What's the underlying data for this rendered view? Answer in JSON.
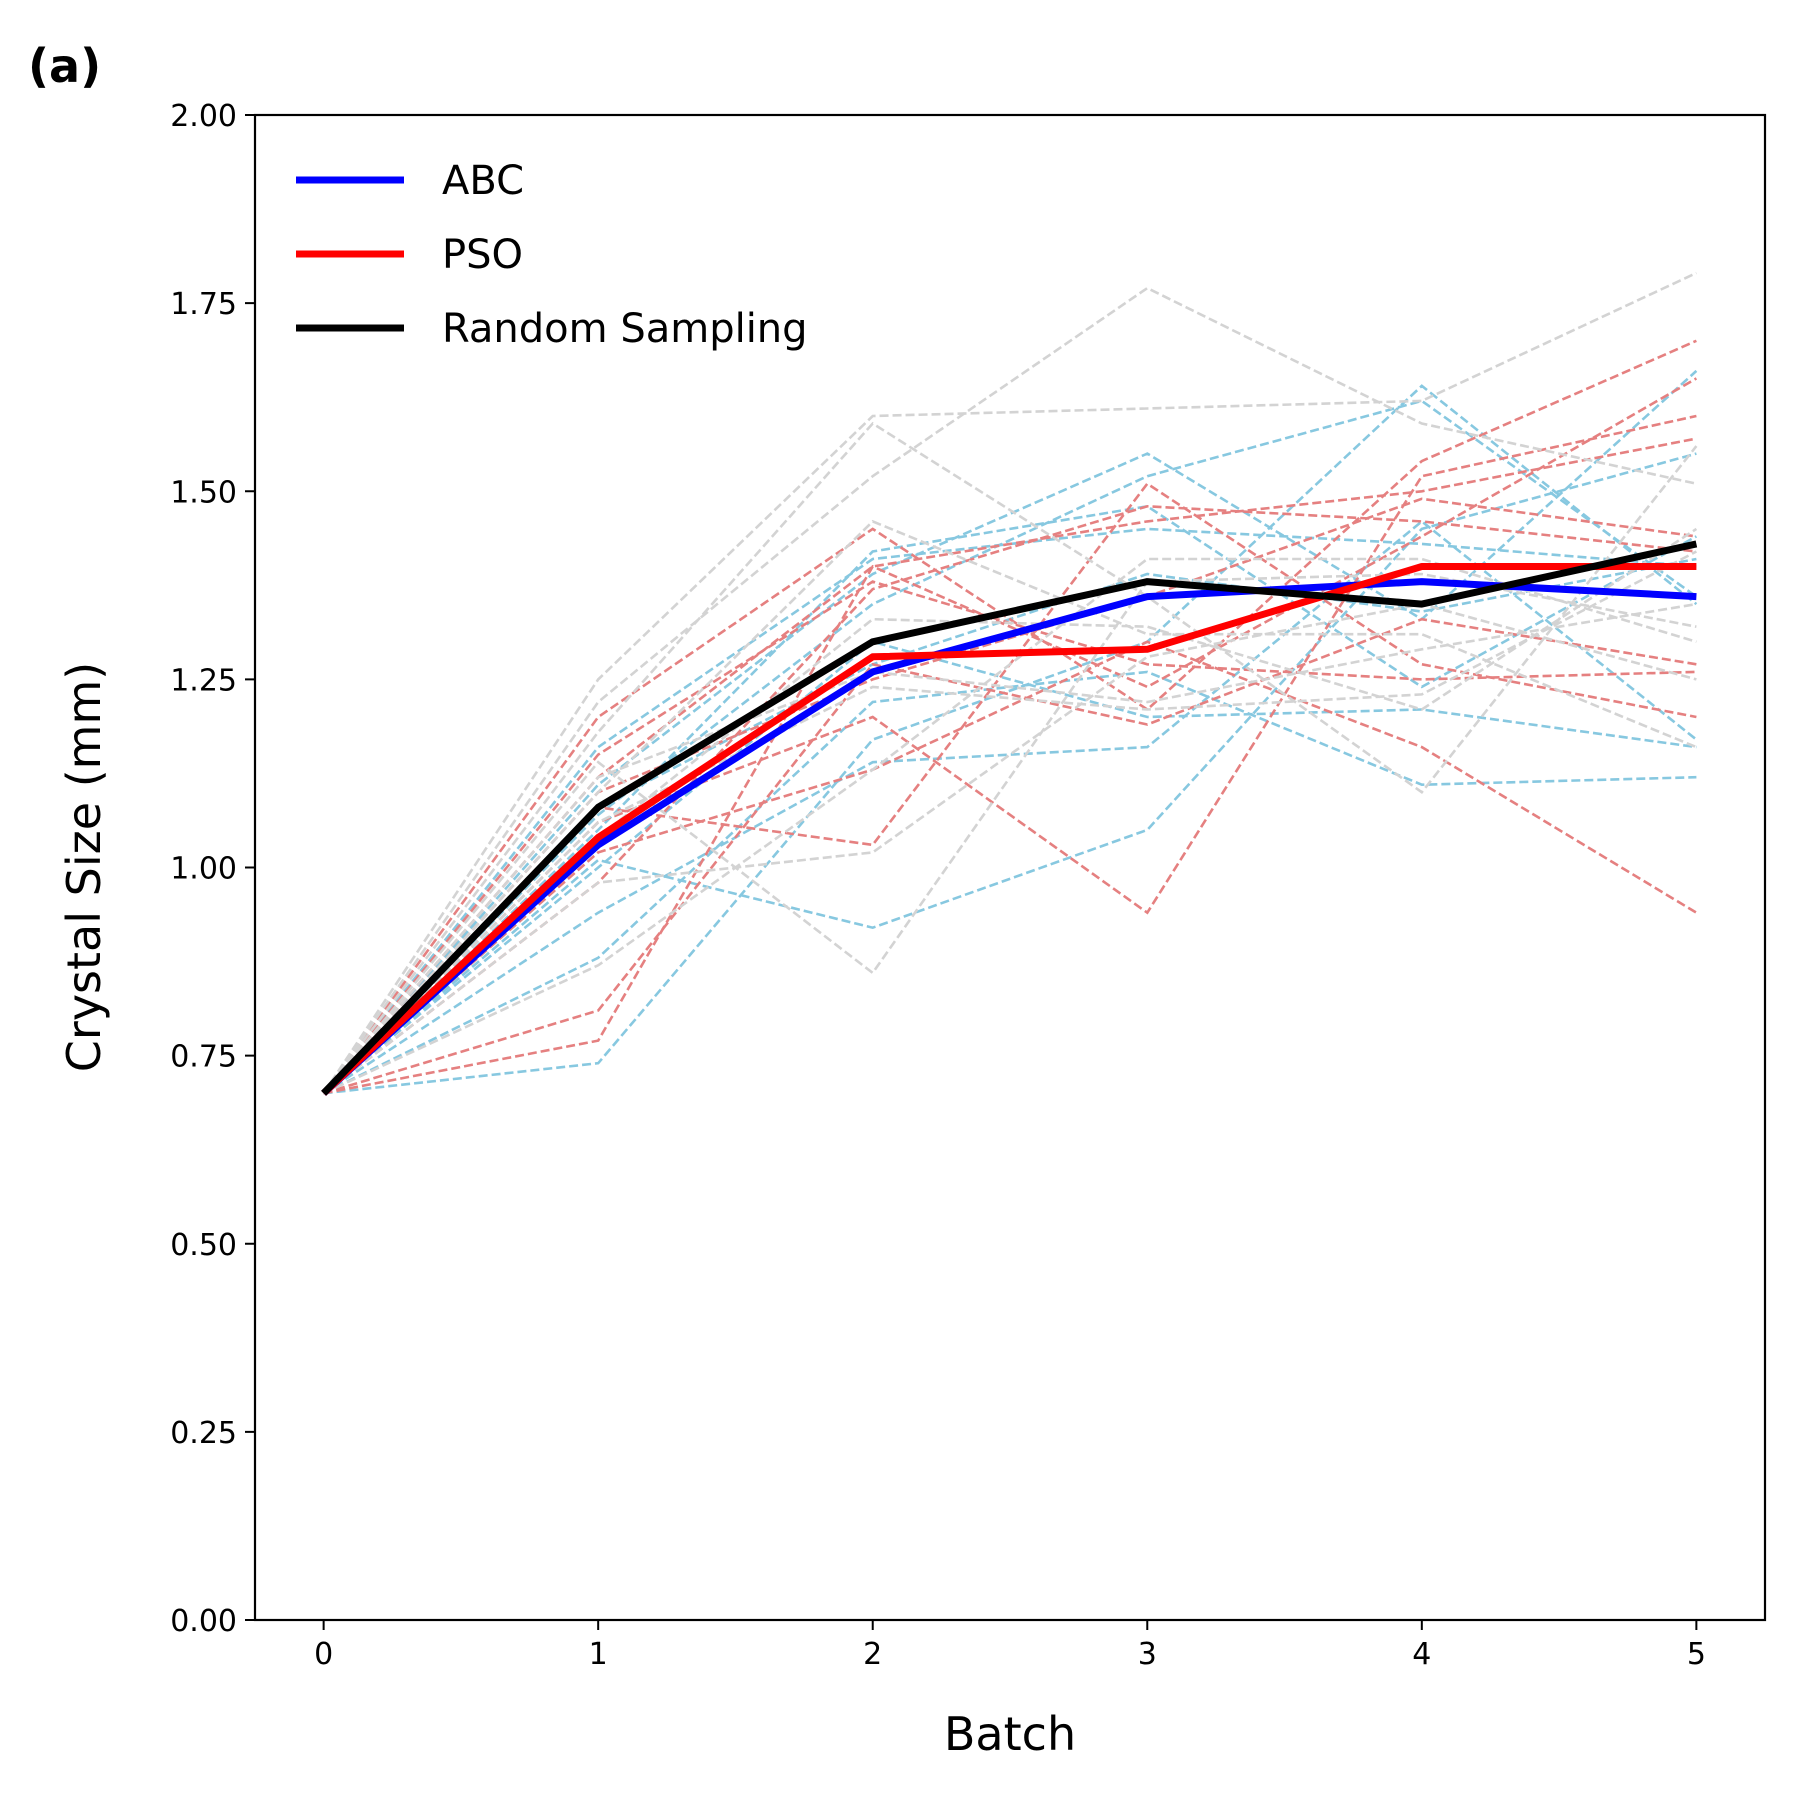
{
  "panel_label": "(a)",
  "chart_data": {
    "type": "line",
    "xlabel": "Batch",
    "ylabel": "Crystal Size (mm)",
    "xlim": [
      -0.25,
      5.25
    ],
    "ylim": [
      0.0,
      2.0
    ],
    "xticks": [
      0,
      1,
      2,
      3,
      4,
      5
    ],
    "yticks": [
      0.0,
      0.25,
      0.5,
      0.75,
      1.0,
      1.25,
      1.5,
      1.75,
      2.0
    ],
    "ytick_labels": [
      "0.00",
      "0.25",
      "0.50",
      "0.75",
      "1.00",
      "1.25",
      "1.50",
      "1.75",
      "2.00"
    ],
    "xtick_labels": [
      "0",
      "1",
      "2",
      "3",
      "4",
      "5"
    ],
    "grid": false,
    "legend_position": "top-left",
    "x": [
      0,
      1,
      2,
      3,
      4,
      5
    ],
    "series": [
      {
        "name": "ABC",
        "color": "#0000ff",
        "values": [
          0.7,
          1.03,
          1.26,
          1.36,
          1.38,
          1.36
        ]
      },
      {
        "name": "PSO",
        "color": "#ff0000",
        "values": [
          0.7,
          1.04,
          1.28,
          1.29,
          1.4,
          1.4
        ]
      },
      {
        "name": "Random Sampling",
        "color": "#000000",
        "values": [
          0.7,
          1.08,
          1.3,
          1.38,
          1.35,
          1.43
        ]
      }
    ],
    "individual_runs": [
      {
        "group": "ABC",
        "color": "#87c8e0",
        "values": [
          0.7,
          1.16,
          1.41,
          1.45,
          1.43,
          1.4
        ]
      },
      {
        "group": "ABC",
        "color": "#87c8e0",
        "values": [
          0.7,
          1.11,
          1.39,
          1.55,
          1.33,
          1.66
        ]
      },
      {
        "group": "ABC",
        "color": "#87c8e0",
        "values": [
          0.7,
          1.07,
          1.35,
          1.52,
          1.62,
          1.36
        ]
      },
      {
        "group": "ABC",
        "color": "#87c8e0",
        "values": [
          0.7,
          1.01,
          0.92,
          1.05,
          1.45,
          1.55
        ]
      },
      {
        "group": "ABC",
        "color": "#87c8e0",
        "values": [
          0.7,
          0.94,
          1.14,
          1.16,
          1.46,
          1.17
        ]
      },
      {
        "group": "ABC",
        "color": "#87c8e0",
        "values": [
          0.7,
          0.88,
          1.22,
          1.26,
          1.11,
          1.12
        ]
      },
      {
        "group": "ABC",
        "color": "#87c8e0",
        "values": [
          0.7,
          0.74,
          1.17,
          1.3,
          1.64,
          1.35
        ]
      },
      {
        "group": "ABC",
        "color": "#87c8e0",
        "values": [
          0.7,
          1.08,
          1.27,
          1.39,
          1.34,
          1.41
        ]
      },
      {
        "group": "ABC",
        "color": "#87c8e0",
        "values": [
          0.7,
          1.05,
          1.42,
          1.48,
          1.24,
          1.44
        ]
      },
      {
        "group": "ABC",
        "color": "#87c8e0",
        "values": [
          0.7,
          1.0,
          1.3,
          1.2,
          1.21,
          1.16
        ]
      },
      {
        "group": "PSO",
        "color": "#e58080",
        "values": [
          0.7,
          1.2,
          1.45,
          1.21,
          1.54,
          1.7
        ]
      },
      {
        "group": "PSO",
        "color": "#e58080",
        "values": [
          0.7,
          1.15,
          1.38,
          1.27,
          1.25,
          1.26
        ]
      },
      {
        "group": "PSO",
        "color": "#e58080",
        "values": [
          0.7,
          1.12,
          1.4,
          1.46,
          1.5,
          1.57
        ]
      },
      {
        "group": "PSO",
        "color": "#e58080",
        "values": [
          0.7,
          1.08,
          1.03,
          1.51,
          1.27,
          1.2
        ]
      },
      {
        "group": "PSO",
        "color": "#e58080",
        "values": [
          0.7,
          1.06,
          1.2,
          0.94,
          1.52,
          1.6
        ]
      },
      {
        "group": "PSO",
        "color": "#e58080",
        "values": [
          0.7,
          1.02,
          1.13,
          1.3,
          1.16,
          0.94
        ]
      },
      {
        "group": "PSO",
        "color": "#e58080",
        "values": [
          0.7,
          0.98,
          1.37,
          1.48,
          1.46,
          1.42
        ]
      },
      {
        "group": "PSO",
        "color": "#e58080",
        "values": [
          0.7,
          0.81,
          1.27,
          1.19,
          1.33,
          1.27
        ]
      },
      {
        "group": "PSO",
        "color": "#e58080",
        "values": [
          0.7,
          0.77,
          1.4,
          1.24,
          1.44,
          1.65
        ]
      },
      {
        "group": "PSO",
        "color": "#e58080",
        "values": [
          0.7,
          1.1,
          1.25,
          1.36,
          1.49,
          1.44
        ]
      },
      {
        "group": "Random Sampling",
        "color": "#d3d3d3",
        "values": [
          0.7,
          1.25,
          1.6,
          1.61,
          1.62,
          1.79
        ]
      },
      {
        "group": "Random Sampling",
        "color": "#d3d3d3",
        "values": [
          0.7,
          1.22,
          1.52,
          1.77,
          1.59,
          1.51
        ]
      },
      {
        "group": "Random Sampling",
        "color": "#d3d3d3",
        "values": [
          0.7,
          1.18,
          1.59,
          1.36,
          1.1,
          1.56
        ]
      },
      {
        "group": "Random Sampling",
        "color": "#d3d3d3",
        "values": [
          0.7,
          1.14,
          0.86,
          1.38,
          1.39,
          1.32
        ]
      },
      {
        "group": "Random Sampling",
        "color": "#d3d3d3",
        "values": [
          0.7,
          1.1,
          1.46,
          1.31,
          1.31,
          1.16
        ]
      },
      {
        "group": "Random Sampling",
        "color": "#d3d3d3",
        "values": [
          0.7,
          1.06,
          1.24,
          1.21,
          1.23,
          1.42
        ]
      },
      {
        "group": "Random Sampling",
        "color": "#d3d3d3",
        "values": [
          0.7,
          0.98,
          1.02,
          1.28,
          1.35,
          1.25
        ]
      },
      {
        "group": "Random Sampling",
        "color": "#d3d3d3",
        "values": [
          0.7,
          0.87,
          1.13,
          1.41,
          1.41,
          1.3
        ]
      },
      {
        "group": "Random Sampling",
        "color": "#d3d3d3",
        "values": [
          0.7,
          1.12,
          1.26,
          1.22,
          1.29,
          1.35
        ]
      },
      {
        "group": "Random Sampling",
        "color": "#d3d3d3",
        "values": [
          0.7,
          1.04,
          1.33,
          1.32,
          1.21,
          1.45
        ]
      }
    ]
  }
}
